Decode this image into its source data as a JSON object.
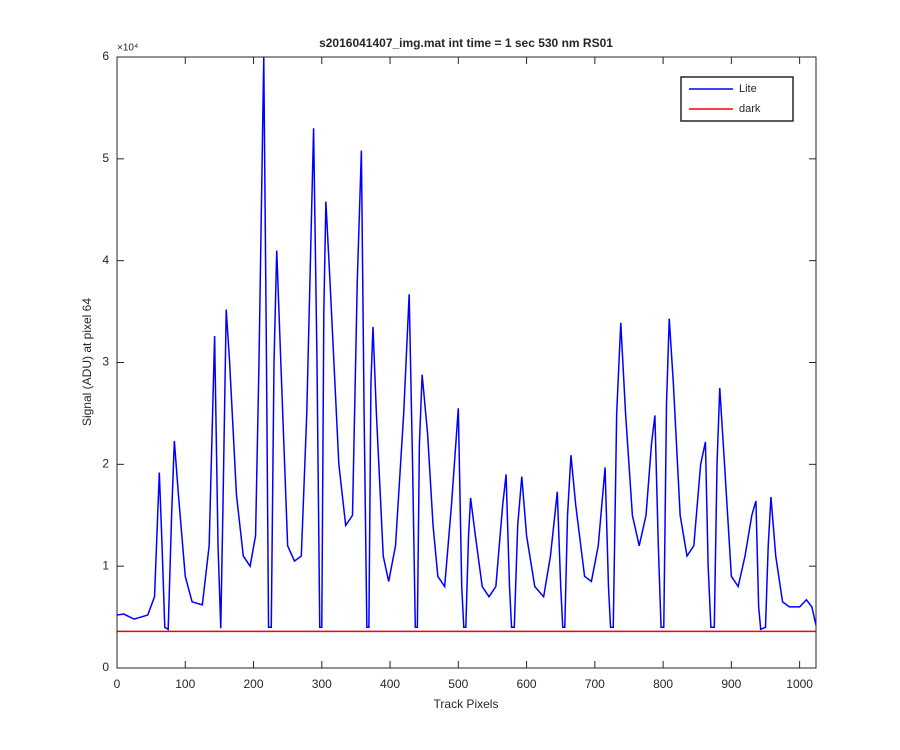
{
  "chart_data": {
    "type": "line",
    "title": "s2016041407_img.mat int time = 1 sec  530 nm RS01",
    "xlabel": "Track Pixels",
    "ylabel": "Signal (ADU) at pixel 64",
    "y_exponent_label": "×10⁴",
    "xlim": [
      0,
      1024
    ],
    "ylim": [
      0,
      60000
    ],
    "xticks": [
      0,
      100,
      200,
      300,
      400,
      500,
      600,
      700,
      800,
      900,
      1000
    ],
    "yticks": [
      {
        "value": 0,
        "label": "0"
      },
      {
        "value": 10000,
        "label": "1"
      },
      {
        "value": 20000,
        "label": "2"
      },
      {
        "value": 30000,
        "label": "3"
      },
      {
        "value": 40000,
        "label": "4"
      },
      {
        "value": 50000,
        "label": "5"
      },
      {
        "value": 60000,
        "label": "6"
      }
    ],
    "legend": "northeast",
    "series": [
      {
        "name": "Lite",
        "color": "#0000ff",
        "x": [
          0,
          10,
          25,
          45,
          55,
          62,
          66,
          70,
          75,
          80,
          84,
          90,
          100,
          110,
          125,
          135,
          143,
          148,
          152,
          155,
          160,
          165,
          175,
          185,
          195,
          203,
          208,
          215,
          219,
          222,
          226,
          230,
          234,
          240,
          250,
          260,
          270,
          278,
          288,
          293,
          297,
          300,
          303,
          306,
          312,
          325,
          335,
          345,
          352,
          358,
          362,
          366,
          369,
          372,
          375,
          380,
          390,
          398,
          408,
          420,
          428,
          433,
          437,
          440,
          443,
          447,
          455,
          463,
          470,
          480,
          490,
          500,
          505,
          508,
          511,
          515,
          518,
          525,
          535,
          545,
          555,
          565,
          570,
          575,
          578,
          582,
          587,
          593,
          600,
          612,
          625,
          635,
          645,
          650,
          653,
          656,
          660,
          665,
          672,
          685,
          695,
          705,
          715,
          720,
          723,
          727,
          732,
          738,
          745,
          755,
          765,
          775,
          783,
          788,
          793,
          797,
          801,
          805,
          809,
          815,
          825,
          835,
          845,
          855,
          862,
          866,
          870,
          875,
          879,
          883,
          890,
          900,
          910,
          920,
          930,
          936,
          940,
          943,
          950,
          954,
          958,
          965,
          975,
          985,
          1000,
          1010,
          1018,
          1024
        ],
        "values": [
          5200,
          5300,
          4800,
          5200,
          7000,
          19200,
          12000,
          4000,
          3800,
          15000,
          22300,
          17000,
          9000,
          6500,
          6200,
          12000,
          32600,
          12000,
          3900,
          15000,
          35200,
          30000,
          17000,
          11000,
          10000,
          13000,
          30000,
          60000,
          30000,
          4000,
          4000,
          30000,
          41000,
          30000,
          12000,
          10500,
          11000,
          25000,
          53000,
          30000,
          4000,
          4000,
          35000,
          45800,
          38000,
          20000,
          14000,
          15000,
          38000,
          50800,
          25000,
          4000,
          4000,
          28000,
          33500,
          25000,
          11000,
          8500,
          12000,
          25000,
          36700,
          20000,
          4000,
          4000,
          22000,
          28800,
          23000,
          14000,
          9000,
          8000,
          16000,
          25500,
          8000,
          4000,
          4000,
          13000,
          16700,
          13000,
          8000,
          7000,
          8000,
          16000,
          19000,
          8000,
          4000,
          4000,
          14000,
          18800,
          13000,
          8000,
          7000,
          11000,
          17300,
          8000,
          4000,
          4000,
          15000,
          20900,
          16000,
          9000,
          8500,
          12000,
          19700,
          8000,
          4000,
          4000,
          25000,
          33900,
          25000,
          15000,
          12000,
          15000,
          22000,
          24800,
          12000,
          4000,
          4000,
          26000,
          34300,
          28000,
          15000,
          11000,
          12000,
          20000,
          22200,
          10000,
          4000,
          4000,
          20000,
          27500,
          20000,
          9000,
          8000,
          11000,
          15000,
          16400,
          6000,
          3800,
          4000,
          12000,
          16800,
          11000,
          6500,
          6000,
          6000,
          6700,
          6000,
          4200
        ]
      },
      {
        "name": "dark",
        "color": "#ff0000",
        "x": [
          0,
          1024
        ],
        "values": [
          3600,
          3600
        ]
      }
    ]
  }
}
